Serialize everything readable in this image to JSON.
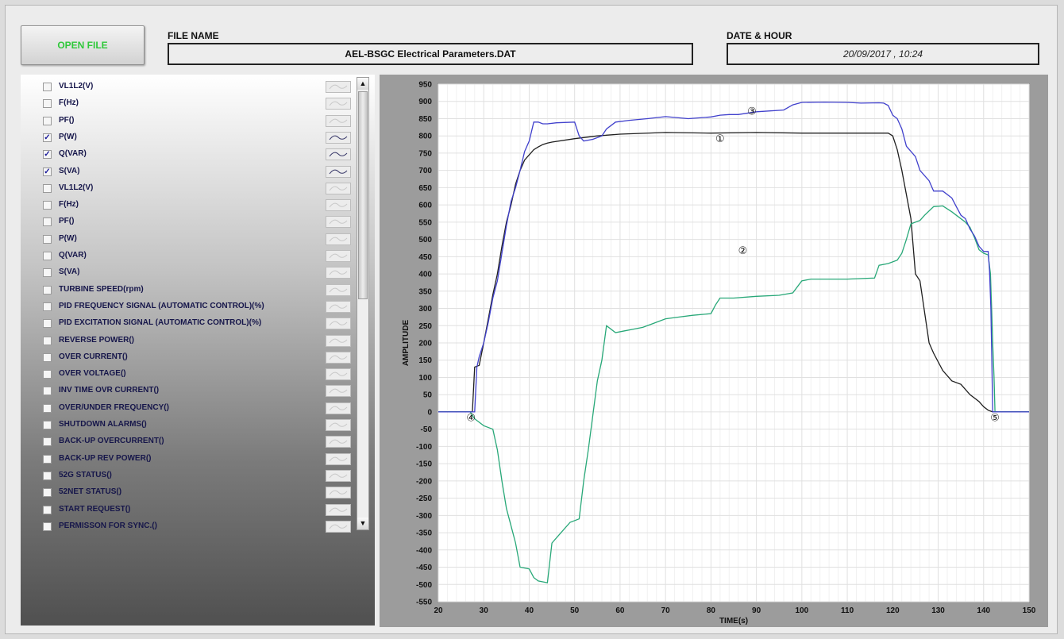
{
  "toolbar": {
    "open_file_label": "OPEN FILE",
    "file_name_label": "FILE NAME",
    "file_name_value": "AEL-BSGC Electrical Parameters.DAT",
    "date_label": "DATE & HOUR",
    "date_value": "20/09/2017 , 10:24"
  },
  "colors": {
    "accent_open_file": "#2fc83a",
    "series_power": "#1f1f1f",
    "series_reactive": "#28a878",
    "series_apparent": "#4040cc"
  },
  "parameters": [
    {
      "label": "VL1L2(V)",
      "checked": false
    },
    {
      "label": "F(Hz)",
      "checked": false
    },
    {
      "label": "PF()",
      "checked": false
    },
    {
      "label": "P(W)",
      "checked": true
    },
    {
      "label": "Q(VAR)",
      "checked": true
    },
    {
      "label": "S(VA)",
      "checked": true
    },
    {
      "label": "VL1L2(V)",
      "checked": false
    },
    {
      "label": "F(Hz)",
      "checked": false
    },
    {
      "label": "PF()",
      "checked": false
    },
    {
      "label": "P(W)",
      "checked": false
    },
    {
      "label": "Q(VAR)",
      "checked": false
    },
    {
      "label": "S(VA)",
      "checked": false
    },
    {
      "label": "TURBINE SPEED(rpm)",
      "checked": false
    },
    {
      "label": "PID FREQUENCY SIGNAL (AUTOMATIC CONTROL)(%)",
      "checked": false
    },
    {
      "label": "PID EXCITATION SIGNAL (AUTOMATIC CONTROL)(%)",
      "checked": false
    },
    {
      "label": "REVERSE POWER()",
      "checked": false
    },
    {
      "label": "OVER CURRENT()",
      "checked": false
    },
    {
      "label": "OVER VOLTAGE()",
      "checked": false
    },
    {
      "label": "INV TIME OVR CURRENT()",
      "checked": false
    },
    {
      "label": "OVER/UNDER FREQUENCY()",
      "checked": false
    },
    {
      "label": "SHUTDOWN ALARMS()",
      "checked": false
    },
    {
      "label": "BACK-UP OVERCURRENT()",
      "checked": false
    },
    {
      "label": "BACK-UP REV POWER()",
      "checked": false
    },
    {
      "label": "52G STATUS()",
      "checked": false
    },
    {
      "label": "52NET STATUS()",
      "checked": false
    },
    {
      "label": "START REQUEST()",
      "checked": false
    },
    {
      "label": "PERMISSON FOR SYNC.()",
      "checked": false
    }
  ],
  "chart_data": {
    "type": "line",
    "title": "",
    "xlabel": "TIME(s)",
    "ylabel": "AMPLITUDE",
    "xlim": [
      20,
      150
    ],
    "ylim": [
      -550,
      950
    ],
    "x_ticks": [
      "20",
      "30",
      "40",
      "50",
      "60",
      "70",
      "80",
      "90",
      "100",
      "110",
      "120",
      "130",
      "140",
      "150"
    ],
    "y_ticks": [
      "950",
      "900",
      "850",
      "800",
      "750",
      "700",
      "650",
      "600",
      "550",
      "500",
      "450",
      "400",
      "350",
      "300",
      "250",
      "200",
      "150",
      "100",
      "50",
      "0",
      "-50",
      "-100",
      "-150",
      "-200",
      "-250",
      "-300",
      "-350",
      "-400",
      "-450",
      "-500",
      "-550"
    ],
    "grid": true,
    "series": [
      {
        "color": "#1f1f1f",
        "points": [
          [
            20,
            0
          ],
          [
            27.5,
            0
          ],
          [
            28,
            130
          ],
          [
            29,
            135
          ],
          [
            30,
            200
          ],
          [
            31,
            270
          ],
          [
            32,
            340
          ],
          [
            33,
            400
          ],
          [
            34,
            480
          ],
          [
            35,
            550
          ],
          [
            36,
            600
          ],
          [
            37,
            660
          ],
          [
            38,
            700
          ],
          [
            39,
            730
          ],
          [
            40,
            745
          ],
          [
            41,
            760
          ],
          [
            42,
            768
          ],
          [
            43,
            775
          ],
          [
            44,
            779
          ],
          [
            45,
            782
          ],
          [
            50,
            792
          ],
          [
            55,
            800
          ],
          [
            60,
            805
          ],
          [
            70,
            810
          ],
          [
            80,
            808
          ],
          [
            90,
            810
          ],
          [
            100,
            808
          ],
          [
            110,
            808
          ],
          [
            119,
            808
          ],
          [
            120,
            800
          ],
          [
            121,
            760
          ],
          [
            122,
            700
          ],
          [
            124,
            560
          ],
          [
            125,
            400
          ],
          [
            126,
            380
          ],
          [
            128,
            200
          ],
          [
            129,
            170
          ],
          [
            131,
            120
          ],
          [
            133,
            90
          ],
          [
            135,
            80
          ],
          [
            137,
            50
          ],
          [
            139,
            30
          ],
          [
            140,
            15
          ],
          [
            141,
            5
          ],
          [
            142,
            0
          ],
          [
            150,
            0
          ]
        ]
      },
      {
        "color": "#28a878",
        "points": [
          [
            20,
            0
          ],
          [
            27,
            0
          ],
          [
            28,
            -20
          ],
          [
            30,
            -40
          ],
          [
            32,
            -50
          ],
          [
            33,
            -110
          ],
          [
            34,
            -200
          ],
          [
            35,
            -280
          ],
          [
            36,
            -330
          ],
          [
            37,
            -380
          ],
          [
            38,
            -450
          ],
          [
            40,
            -455
          ],
          [
            41,
            -480
          ],
          [
            42,
            -490
          ],
          [
            44,
            -495
          ],
          [
            45,
            -380
          ],
          [
            47,
            -350
          ],
          [
            49,
            -320
          ],
          [
            51,
            -310
          ],
          [
            52,
            -200
          ],
          [
            53,
            -110
          ],
          [
            55,
            90
          ],
          [
            56,
            150
          ],
          [
            57,
            250
          ],
          [
            59,
            230
          ],
          [
            61,
            235
          ],
          [
            63,
            240
          ],
          [
            65,
            245
          ],
          [
            67,
            255
          ],
          [
            70,
            270
          ],
          [
            73,
            275
          ],
          [
            76,
            280
          ],
          [
            80,
            285
          ],
          [
            81,
            310
          ],
          [
            82,
            330
          ],
          [
            85,
            330
          ],
          [
            90,
            335
          ],
          [
            95,
            338
          ],
          [
            98,
            345
          ],
          [
            100,
            380
          ],
          [
            102,
            385
          ],
          [
            110,
            385
          ],
          [
            116,
            388
          ],
          [
            117,
            425
          ],
          [
            119,
            430
          ],
          [
            121,
            440
          ],
          [
            122,
            460
          ],
          [
            123,
            500
          ],
          [
            124,
            545
          ],
          [
            126,
            555
          ],
          [
            127,
            570
          ],
          [
            129,
            595
          ],
          [
            131,
            597
          ],
          [
            133,
            580
          ],
          [
            134,
            570
          ],
          [
            136,
            550
          ],
          [
            137,
            535
          ],
          [
            138,
            505
          ],
          [
            139,
            470
          ],
          [
            140,
            460
          ],
          [
            141,
            455
          ],
          [
            141.5,
            400
          ],
          [
            142,
            200
          ],
          [
            142.3,
            100
          ],
          [
            142.5,
            0
          ],
          [
            150,
            0
          ]
        ]
      },
      {
        "color": "#4040cc",
        "points": [
          [
            20,
            0
          ],
          [
            28,
            0
          ],
          [
            28.5,
            130
          ],
          [
            29,
            160
          ],
          [
            30,
            200
          ],
          [
            31,
            260
          ],
          [
            32,
            330
          ],
          [
            33,
            380
          ],
          [
            34,
            460
          ],
          [
            35,
            540
          ],
          [
            36,
            610
          ],
          [
            37,
            650
          ],
          [
            38,
            700
          ],
          [
            39,
            755
          ],
          [
            40,
            785
          ],
          [
            41,
            840
          ],
          [
            42,
            840
          ],
          [
            43,
            835
          ],
          [
            44,
            835
          ],
          [
            46,
            838
          ],
          [
            50,
            840
          ],
          [
            51,
            800
          ],
          [
            52,
            785
          ],
          [
            54,
            790
          ],
          [
            56,
            800
          ],
          [
            57,
            820
          ],
          [
            59,
            840
          ],
          [
            62,
            845
          ],
          [
            66,
            850
          ],
          [
            70,
            856
          ],
          [
            75,
            850
          ],
          [
            80,
            855
          ],
          [
            82,
            860
          ],
          [
            84,
            862
          ],
          [
            86,
            862
          ],
          [
            90,
            870
          ],
          [
            96,
            875
          ],
          [
            98,
            890
          ],
          [
            100,
            897
          ],
          [
            105,
            898
          ],
          [
            110,
            897
          ],
          [
            113,
            895
          ],
          [
            117,
            896
          ],
          [
            118,
            895
          ],
          [
            119,
            888
          ],
          [
            120,
            860
          ],
          [
            121,
            850
          ],
          [
            122,
            820
          ],
          [
            123,
            770
          ],
          [
            125,
            740
          ],
          [
            126,
            700
          ],
          [
            128,
            670
          ],
          [
            129,
            640
          ],
          [
            131,
            640
          ],
          [
            133,
            620
          ],
          [
            134,
            595
          ],
          [
            135,
            570
          ],
          [
            136,
            560
          ],
          [
            137,
            530
          ],
          [
            138,
            510
          ],
          [
            139,
            480
          ],
          [
            140,
            465
          ],
          [
            141,
            465
          ],
          [
            141.3,
            410
          ],
          [
            141.6,
            300
          ],
          [
            141.8,
            150
          ],
          [
            142,
            0
          ],
          [
            150,
            0
          ]
        ]
      }
    ],
    "annotations": [
      {
        "text": "①",
        "x": 82,
        "y": 790
      },
      {
        "text": "②",
        "x": 87,
        "y": 466
      },
      {
        "text": "③",
        "x": 89,
        "y": 870
      },
      {
        "text": "④",
        "x": 27.2,
        "y": -18
      },
      {
        "text": "⑤",
        "x": 142.5,
        "y": -18
      }
    ]
  }
}
